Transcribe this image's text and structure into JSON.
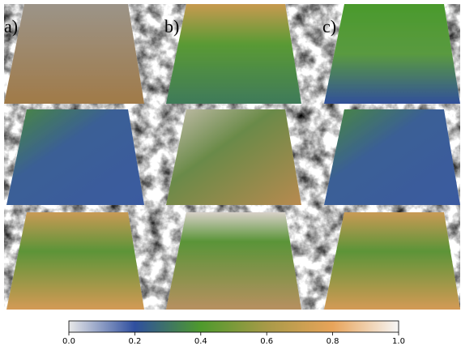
{
  "panel_labels": [
    "a)",
    "b)",
    "c)"
  ],
  "colorbar": {
    "lim": [
      0,
      1
    ],
    "ticks": [
      {
        "value": 0,
        "label": "0.0"
      },
      {
        "value": 0.2,
        "label": "0.2"
      },
      {
        "value": 0.4,
        "label": "0.4"
      },
      {
        "value": 0.6,
        "label": "0.6"
      },
      {
        "value": 0.8,
        "label": "0.8"
      },
      {
        "value": 1,
        "label": "1.0"
      }
    ],
    "colors": [
      "#e8e8e8",
      "#2f4f9f",
      "#4e9a2c",
      "#a89a48",
      "#e8a45a",
      "#f6f6f6"
    ]
  }
}
